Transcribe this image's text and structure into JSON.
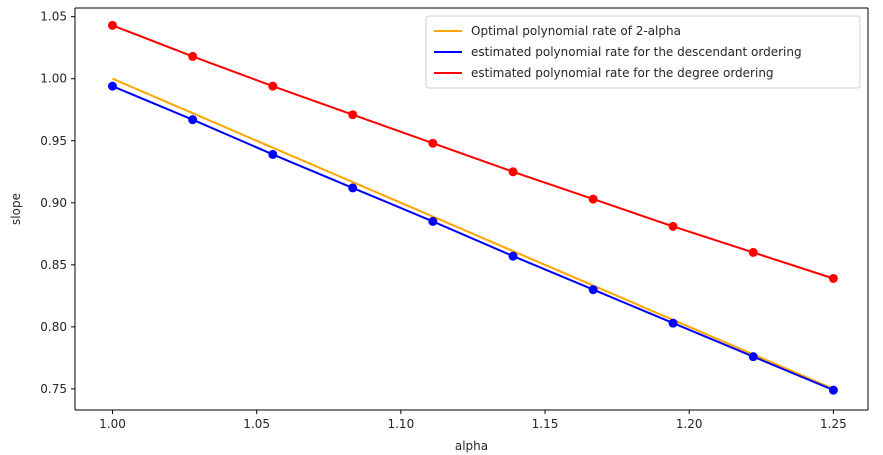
{
  "chart_data": {
    "type": "line",
    "title": "",
    "xlabel": "alpha",
    "ylabel": "slope",
    "xlim": [
      0.987,
      1.262
    ],
    "ylim": [
      0.733,
      1.057
    ],
    "xticks": [
      1.0,
      1.05,
      1.1,
      1.15,
      1.2,
      1.25
    ],
    "xtick_labels": [
      "1.00",
      "1.05",
      "1.10",
      "1.15",
      "1.20",
      "1.25"
    ],
    "yticks": [
      0.75,
      0.8,
      0.85,
      0.9,
      0.95,
      1.0,
      1.05
    ],
    "ytick_labels": [
      "0.75",
      "0.80",
      "0.85",
      "0.90",
      "0.95",
      "1.00",
      "1.05"
    ],
    "grid": false,
    "legend_position": "top-right",
    "x": [
      1.0,
      1.0278,
      1.0556,
      1.0833,
      1.1111,
      1.1389,
      1.1667,
      1.1944,
      1.2222,
      1.25
    ],
    "series": [
      {
        "name": "Optimal polynomial rate of 2-alpha",
        "color": "#ffa500",
        "markers": false,
        "values": [
          1.0,
          0.9722,
          0.9444,
          0.9167,
          0.8889,
          0.8611,
          0.8333,
          0.8056,
          0.7778,
          0.75
        ]
      },
      {
        "name": "estimated polynomial rate for the descendant ordering",
        "color": "#0000ff",
        "markers": true,
        "values": [
          0.994,
          0.967,
          0.939,
          0.912,
          0.885,
          0.857,
          0.83,
          0.803,
          0.776,
          0.749
        ]
      },
      {
        "name": "estimated polynomial rate for the degree ordering",
        "color": "#ff0000",
        "markers": true,
        "values": [
          1.043,
          1.018,
          0.994,
          0.971,
          0.948,
          0.925,
          0.903,
          0.881,
          0.86,
          0.839
        ]
      }
    ]
  }
}
